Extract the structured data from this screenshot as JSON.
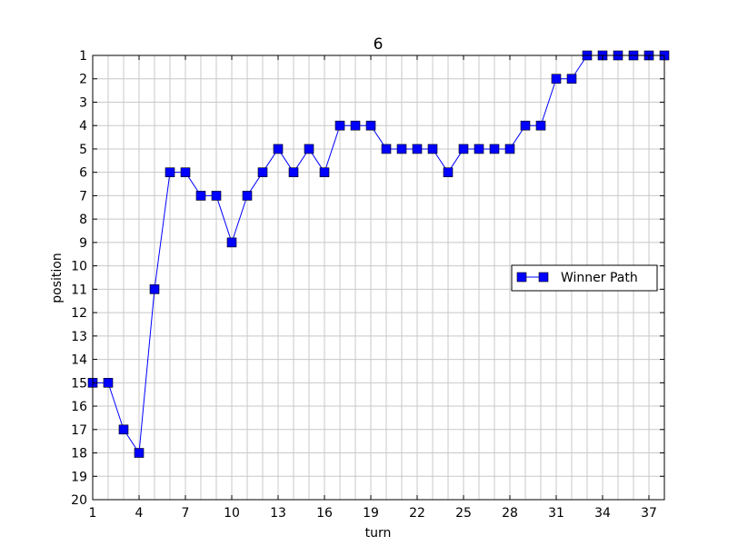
{
  "chart_data": {
    "type": "line",
    "title": "6",
    "xlabel": "turn",
    "ylabel": "position",
    "xlim": [
      1,
      38
    ],
    "ylim": [
      20,
      1
    ],
    "y_inverted": true,
    "grid": true,
    "legend_position": "right",
    "x_ticks": [
      "1",
      "4",
      "7",
      "10",
      "13",
      "16",
      "19",
      "22",
      "25",
      "28",
      "31",
      "34",
      "37"
    ],
    "y_ticks": [
      "1",
      "2",
      "3",
      "4",
      "5",
      "6",
      "7",
      "8",
      "9",
      "10",
      "11",
      "12",
      "13",
      "14",
      "15",
      "16",
      "17",
      "18",
      "19",
      "20"
    ],
    "series": [
      {
        "name": "Winner Path",
        "color": "#0000ff",
        "marker": "square",
        "x": [
          1,
          2,
          3,
          4,
          5,
          6,
          7,
          8,
          9,
          10,
          11,
          12,
          13,
          14,
          15,
          16,
          17,
          18,
          19,
          20,
          21,
          22,
          23,
          24,
          25,
          26,
          27,
          28,
          29,
          30,
          31,
          32,
          33,
          34,
          35,
          36,
          37,
          38
        ],
        "y": [
          15,
          15,
          17,
          18,
          11,
          6,
          6,
          7,
          7,
          9,
          7,
          6,
          5,
          6,
          5,
          6,
          4,
          4,
          4,
          5,
          5,
          5,
          5,
          6,
          5,
          5,
          5,
          5,
          4,
          4,
          2,
          2,
          1,
          1,
          1,
          1,
          1,
          1
        ]
      }
    ]
  }
}
